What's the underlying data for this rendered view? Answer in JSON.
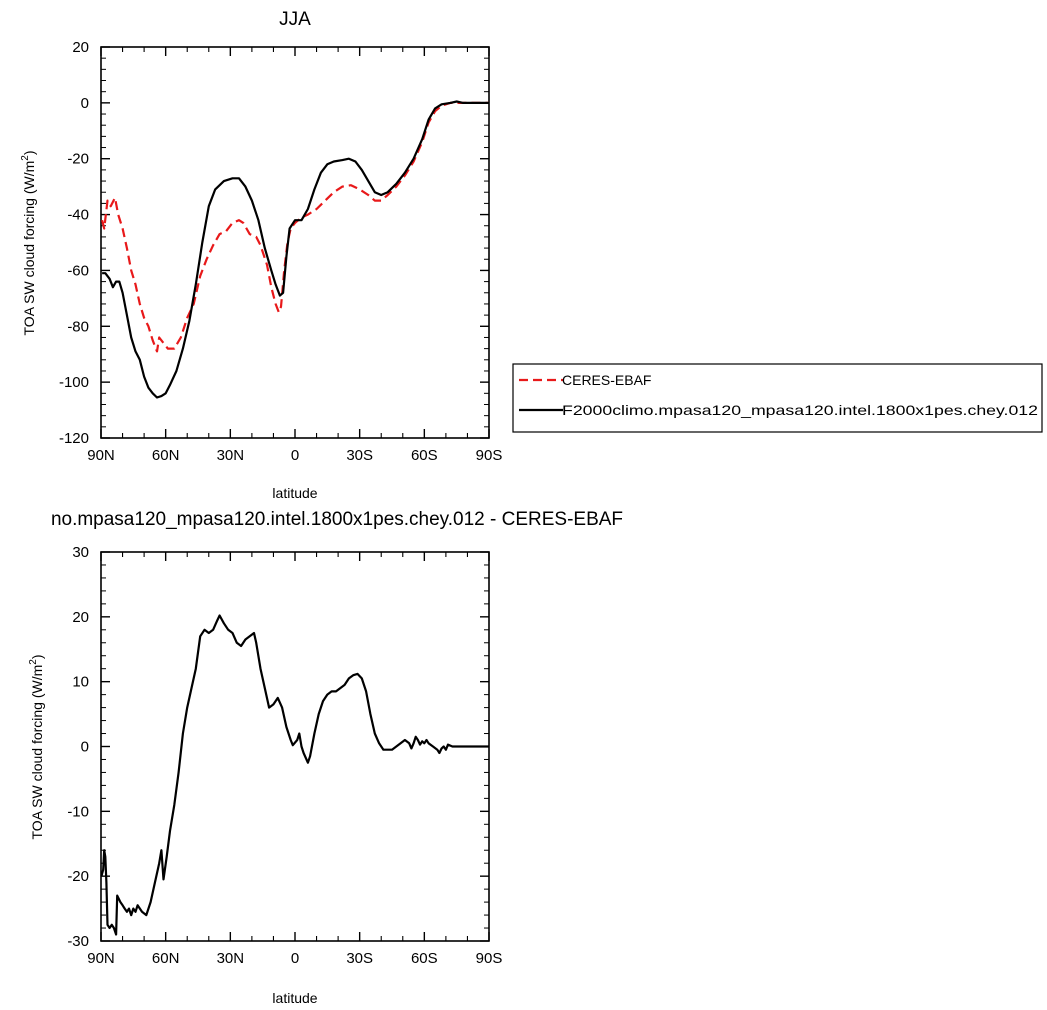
{
  "chart_data": [
    {
      "type": "line",
      "title": "JJA",
      "xlabel": "latitude",
      "ylabel": "TOA SW cloud forcing (W/m",
      "ylabel_sup": "2",
      "ylabel_close": ")",
      "xlim": [
        90,
        -90
      ],
      "ylim": [
        -120,
        20
      ],
      "xticks": [
        {
          "value": 90,
          "label": "90N"
        },
        {
          "value": 60,
          "label": "60N"
        },
        {
          "value": 30,
          "label": "30N"
        },
        {
          "value": 0,
          "label": "0"
        },
        {
          "value": -30,
          "label": "30S"
        },
        {
          "value": -60,
          "label": "60S"
        },
        {
          "value": -90,
          "label": "90S"
        }
      ],
      "yticks": [
        20,
        0,
        -20,
        -40,
        -60,
        -80,
        -100,
        -120
      ],
      "legend_position": "right",
      "series": [
        {
          "name": "CERES-EBAF",
          "color": "#e8191a",
          "dash": "dashed",
          "points": [
            [
              89.5,
              -42
            ],
            [
              88.5,
              -45
            ],
            [
              87,
              -35
            ],
            [
              85.5,
              -37
            ],
            [
              83.5,
              -34
            ],
            [
              82,
              -40
            ],
            [
              80,
              -45
            ],
            [
              78,
              -52
            ],
            [
              76,
              -60
            ],
            [
              74,
              -65
            ],
            [
              72,
              -72
            ],
            [
              70,
              -77
            ],
            [
              68,
              -80
            ],
            [
              66,
              -85
            ],
            [
              64,
              -89
            ],
            [
              63,
              -84
            ],
            [
              61,
              -86
            ],
            [
              59,
              -88
            ],
            [
              56,
              -88
            ],
            [
              53,
              -84
            ],
            [
              50,
              -77
            ],
            [
              47,
              -72
            ],
            [
              44,
              -62
            ],
            [
              41,
              -56
            ],
            [
              38,
              -51
            ],
            [
              35,
              -47
            ],
            [
              32,
              -46
            ],
            [
              29,
              -43
            ],
            [
              26,
              -42
            ],
            [
              24,
              -43
            ],
            [
              21,
              -47
            ],
            [
              18,
              -48
            ],
            [
              16,
              -51
            ],
            [
              13,
              -58
            ],
            [
              11,
              -66
            ],
            [
              9,
              -72
            ],
            [
              7.5,
              -75
            ],
            [
              6.5,
              -73
            ],
            [
              5,
              -60
            ],
            [
              3.5,
              -50
            ],
            [
              2,
              -45
            ],
            [
              0,
              -43
            ],
            [
              -3,
              -41
            ],
            [
              -6,
              -40
            ],
            [
              -10,
              -38
            ],
            [
              -14,
              -35
            ],
            [
              -18,
              -32
            ],
            [
              -22,
              -30
            ],
            [
              -26,
              -29.5
            ],
            [
              -30,
              -31
            ],
            [
              -34,
              -33
            ],
            [
              -37,
              -35
            ],
            [
              -40,
              -35
            ],
            [
              -43,
              -33
            ],
            [
              -47,
              -30
            ],
            [
              -51,
              -26
            ],
            [
              -55,
              -21
            ],
            [
              -59,
              -14
            ],
            [
              -62,
              -7
            ],
            [
              -65,
              -3
            ],
            [
              -68,
              -1
            ],
            [
              -72,
              0
            ],
            [
              -76,
              0
            ],
            [
              -80,
              0
            ],
            [
              -85,
              0
            ],
            [
              -90,
              0
            ]
          ]
        },
        {
          "name": "F2000climo.mpasa120_mpasa120.intel.1800x1pes.chey.012",
          "color": "#000000",
          "dash": "solid",
          "points": [
            [
              89.5,
              -61
            ],
            [
              88,
              -61
            ],
            [
              86,
              -63
            ],
            [
              84.5,
              -66
            ],
            [
              83,
              -64
            ],
            [
              81.5,
              -64
            ],
            [
              80,
              -68
            ],
            [
              78,
              -76
            ],
            [
              76,
              -84
            ],
            [
              74,
              -89
            ],
            [
              72,
              -92
            ],
            [
              70,
              -98
            ],
            [
              68,
              -102
            ],
            [
              66,
              -104
            ],
            [
              64,
              -105.5
            ],
            [
              62,
              -105
            ],
            [
              60,
              -104
            ],
            [
              58,
              -101
            ],
            [
              55,
              -96
            ],
            [
              52,
              -88
            ],
            [
              49,
              -78
            ],
            [
              46,
              -65
            ],
            [
              43,
              -50
            ],
            [
              40,
              -37
            ],
            [
              37,
              -31
            ],
            [
              33,
              -28
            ],
            [
              29,
              -27
            ],
            [
              26,
              -27
            ],
            [
              23,
              -30
            ],
            [
              20,
              -35
            ],
            [
              17,
              -42
            ],
            [
              14,
              -52
            ],
            [
              11,
              -60
            ],
            [
              9,
              -65
            ],
            [
              7,
              -69
            ],
            [
              5.5,
              -68
            ],
            [
              4,
              -55
            ],
            [
              2.5,
              -45
            ],
            [
              0,
              -42
            ],
            [
              -3,
              -42
            ],
            [
              -6,
              -38
            ],
            [
              -9,
              -31
            ],
            [
              -12,
              -25
            ],
            [
              -15,
              -22
            ],
            [
              -18,
              -21
            ],
            [
              -22,
              -20.5
            ],
            [
              -25,
              -20
            ],
            [
              -28,
              -21
            ],
            [
              -31,
              -24
            ],
            [
              -34,
              -28
            ],
            [
              -37,
              -32
            ],
            [
              -40,
              -33
            ],
            [
              -43,
              -32
            ],
            [
              -47,
              -29
            ],
            [
              -51,
              -25
            ],
            [
              -55,
              -20
            ],
            [
              -59,
              -13
            ],
            [
              -62,
              -6
            ],
            [
              -65,
              -2
            ],
            [
              -68,
              -0.5
            ],
            [
              -72,
              0
            ],
            [
              -75,
              0.5
            ],
            [
              -78,
              0
            ],
            [
              -82,
              0
            ],
            [
              -86,
              0
            ],
            [
              -90,
              0
            ]
          ]
        }
      ]
    },
    {
      "type": "line",
      "title": "no.mpasa120_mpasa120.intel.1800x1pes.chey.012 - CERES-EBAF",
      "xlabel": "latitude",
      "ylabel": "TOA SW cloud forcing (W/m",
      "ylabel_sup": "2",
      "ylabel_close": ")",
      "xlim": [
        90,
        -90
      ],
      "ylim": [
        -30,
        30
      ],
      "xticks": [
        {
          "value": 90,
          "label": "90N"
        },
        {
          "value": 60,
          "label": "60N"
        },
        {
          "value": 30,
          "label": "30N"
        },
        {
          "value": 0,
          "label": "0"
        },
        {
          "value": -30,
          "label": "30S"
        },
        {
          "value": -60,
          "label": "60S"
        },
        {
          "value": -90,
          "label": "90S"
        }
      ],
      "yticks": [
        30,
        20,
        10,
        0,
        -10,
        -20,
        -30
      ],
      "series": [
        {
          "color": "#000000",
          "dash": "solid",
          "points": [
            [
              89.8,
              -20
            ],
            [
              89,
              -19
            ],
            [
              88.5,
              -16
            ],
            [
              88,
              -17
            ],
            [
              87.5,
              -21
            ],
            [
              87,
              -27.5
            ],
            [
              86,
              -28
            ],
            [
              85,
              -27.5
            ],
            [
              84,
              -28
            ],
            [
              83,
              -29
            ],
            [
              82.5,
              -23
            ],
            [
              81,
              -24
            ],
            [
              80,
              -24.5
            ],
            [
              79,
              -25
            ],
            [
              78,
              -25.5
            ],
            [
              77,
              -25
            ],
            [
              76,
              -26
            ],
            [
              75,
              -25
            ],
            [
              74,
              -25.5
            ],
            [
              73,
              -24.5
            ],
            [
              71,
              -25.5
            ],
            [
              69,
              -26
            ],
            [
              67,
              -24
            ],
            [
              65,
              -21
            ],
            [
              63,
              -18
            ],
            [
              62,
              -16
            ],
            [
              61,
              -20.5
            ],
            [
              59.5,
              -17
            ],
            [
              58,
              -13
            ],
            [
              56,
              -9
            ],
            [
              54,
              -4
            ],
            [
              52,
              2
            ],
            [
              50,
              6
            ],
            [
              48,
              9
            ],
            [
              46,
              12
            ],
            [
              44,
              17
            ],
            [
              42,
              18
            ],
            [
              40,
              17.5
            ],
            [
              38,
              18
            ],
            [
              36,
              19.5
            ],
            [
              35,
              20.2
            ],
            [
              33,
              19
            ],
            [
              31,
              18
            ],
            [
              29,
              17.5
            ],
            [
              27,
              16
            ],
            [
              25,
              15.5
            ],
            [
              23,
              16.5
            ],
            [
              21,
              17
            ],
            [
              19,
              17.5
            ],
            [
              18,
              16
            ],
            [
              16,
              12
            ],
            [
              14,
              9
            ],
            [
              12,
              6
            ],
            [
              10,
              6.5
            ],
            [
              8,
              7.5
            ],
            [
              6,
              6
            ],
            [
              4,
              3
            ],
            [
              2,
              1
            ],
            [
              1,
              0.2
            ],
            [
              -1,
              1
            ],
            [
              -2,
              2
            ],
            [
              -3,
              0
            ],
            [
              -4,
              -1
            ],
            [
              -6,
              -2.5
            ],
            [
              -7,
              -1.5
            ],
            [
              -9,
              2
            ],
            [
              -11,
              5
            ],
            [
              -13,
              7
            ],
            [
              -15,
              8
            ],
            [
              -17,
              8.5
            ],
            [
              -19,
              8.5
            ],
            [
              -21,
              9
            ],
            [
              -23,
              9.5
            ],
            [
              -25,
              10.5
            ],
            [
              -27,
              11
            ],
            [
              -29,
              11.2
            ],
            [
              -31,
              10.5
            ],
            [
              -33,
              8.5
            ],
            [
              -35,
              5
            ],
            [
              -37,
              2
            ],
            [
              -39,
              0.5
            ],
            [
              -41,
              -0.5
            ],
            [
              -43,
              -0.5
            ],
            [
              -45,
              -0.5
            ],
            [
              -47,
              0
            ],
            [
              -49,
              0.5
            ],
            [
              -51,
              1
            ],
            [
              -53,
              0.5
            ],
            [
              -54,
              -0.3
            ],
            [
              -55,
              0.5
            ],
            [
              -56,
              1.5
            ],
            [
              -57,
              1
            ],
            [
              -58,
              0.3
            ],
            [
              -59,
              0.8
            ],
            [
              -60,
              0.5
            ],
            [
              -61,
              1
            ],
            [
              -62,
              0.5
            ],
            [
              -64,
              0
            ],
            [
              -66,
              -0.5
            ],
            [
              -67,
              -1
            ],
            [
              -68,
              -0.3
            ],
            [
              -69,
              0
            ],
            [
              -70,
              -0.5
            ],
            [
              -71,
              0.3
            ],
            [
              -73,
              0
            ],
            [
              -76,
              0
            ],
            [
              -80,
              0
            ],
            [
              -85,
              0
            ],
            [
              -90,
              0
            ]
          ]
        }
      ]
    }
  ]
}
